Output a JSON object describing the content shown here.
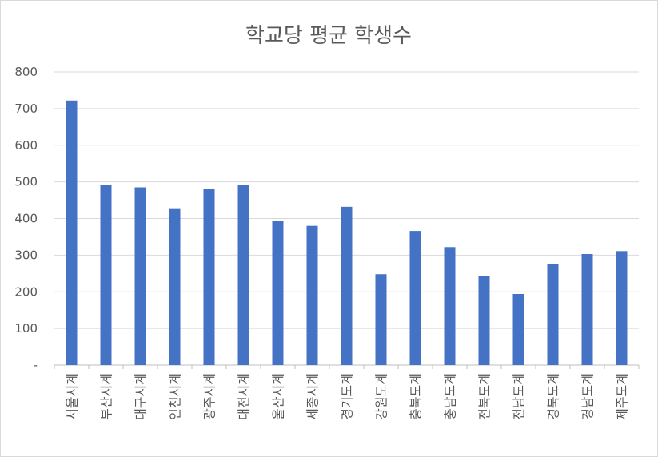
{
  "chart_data": {
    "type": "bar",
    "title": "학교당 평균 학생수",
    "xlabel": "",
    "ylabel": "",
    "ylim": [
      0,
      800
    ],
    "yticks": [
      0,
      100,
      200,
      300,
      400,
      500,
      600,
      700,
      800
    ],
    "ytick_labels": [
      "-",
      "100",
      "200",
      "300",
      "400",
      "500",
      "600",
      "700",
      "800"
    ],
    "grid": true,
    "legend": "none",
    "bar_color": "#4472c4",
    "categories": [
      "서울시계",
      "부산시계",
      "대구시계",
      "인천시계",
      "광주시계",
      "대전시계",
      "울산시계",
      "세종시계",
      "경기도계",
      "강원도계",
      "충북도계",
      "충남도계",
      "전북도계",
      "전남도계",
      "경북도계",
      "경남도계",
      "제주도계"
    ],
    "values": [
      722,
      491,
      485,
      428,
      481,
      491,
      393,
      380,
      432,
      248,
      366,
      322,
      242,
      194,
      276,
      303,
      311
    ]
  }
}
